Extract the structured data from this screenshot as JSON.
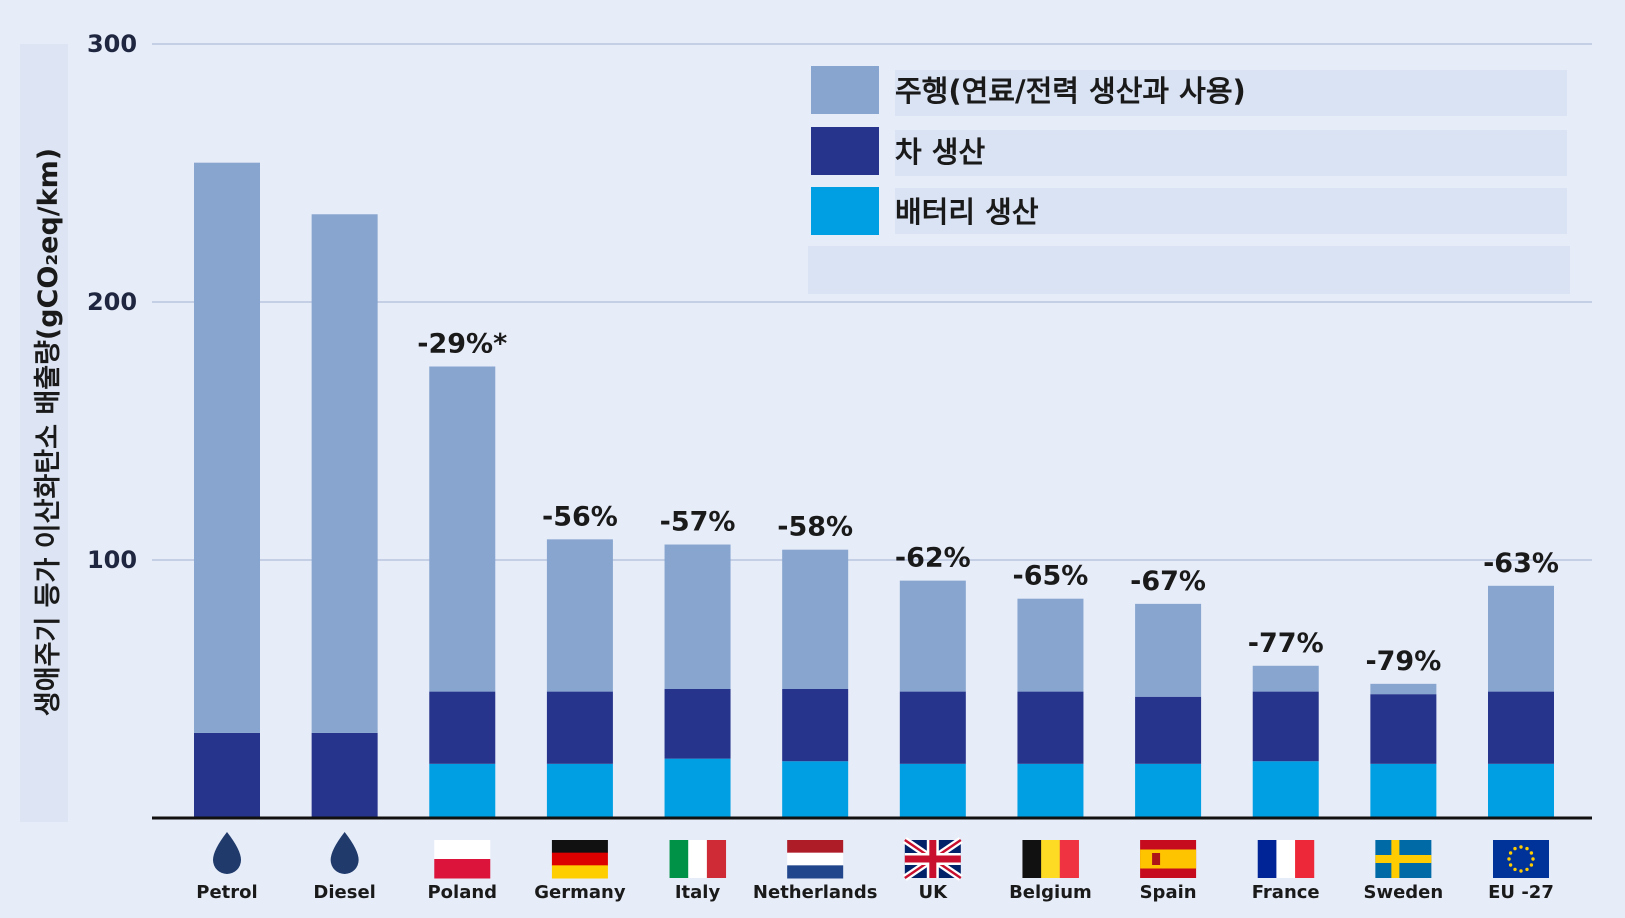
{
  "chart_data": {
    "type": "bar",
    "stacked": true,
    "ylabel": "생애주기 등가 이산화탄소 배출량(gCO₂eq/km)",
    "ylim": [
      0,
      300
    ],
    "yticks": [
      100,
      200,
      300
    ],
    "grid": true,
    "legend_position": "top-right",
    "categories": [
      "Petrol",
      "Diesel",
      "Poland",
      "Germany",
      "Italy",
      "Netherlands",
      "UK",
      "Belgium",
      "Spain",
      "France",
      "Sweden",
      "EU -27"
    ],
    "series": [
      {
        "name": "배터리 생산",
        "color": "#009fe3",
        "values": [
          0,
          0,
          21,
          21,
          23,
          22,
          21,
          21,
          21,
          22,
          21,
          21
        ]
      },
      {
        "name": "차 생산",
        "color": "#27348b",
        "values": [
          33,
          33,
          28,
          28,
          27,
          28,
          28,
          28,
          26,
          27,
          27,
          28
        ]
      },
      {
        "name": "주행(연료/전력 생산과 사용)",
        "color": "#87a5cf",
        "values": [
          221,
          201,
          126,
          59,
          56,
          54,
          43,
          36,
          36,
          10,
          4,
          41
        ]
      }
    ],
    "annotations": [
      "",
      "",
      "-29%*",
      "-56%",
      "-57%",
      "-58%",
      "-62%",
      "-65%",
      "-67%",
      "-77%",
      "-79%",
      "-63%"
    ],
    "colors": {
      "background": "#e6ecf8",
      "grid": "#c4cfe6",
      "axis": "#111111"
    }
  }
}
